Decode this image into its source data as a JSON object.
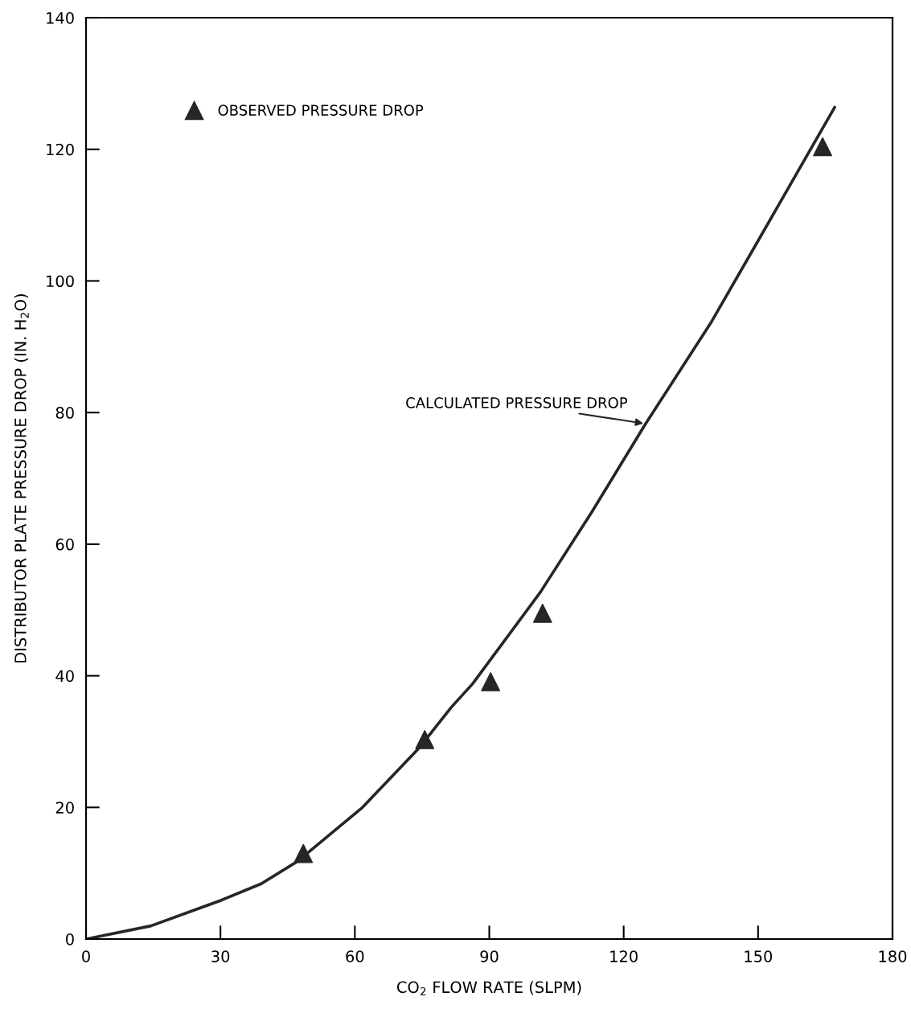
{
  "chart_data": {
    "type": "line",
    "xlabel": "CO$_{2}$ FLOW RATE (SLPM)",
    "ylabel": "DISTRIBUTOR PLATE PRESSURE DROP (IN. H$_{2}$O)",
    "xlim": [
      0,
      180
    ],
    "ylim": [
      0,
      140
    ],
    "xticks": [
      0,
      30,
      60,
      90,
      120,
      150,
      180
    ],
    "yticks": [
      0,
      20,
      40,
      60,
      80,
      100,
      120,
      140
    ],
    "grid": false,
    "legend": "top left",
    "series": [
      {
        "name": "OBSERVED PRESSURE DROP",
        "type": "scatter",
        "marker": "triangle",
        "color": "#262626",
        "x": [
          48.5,
          75.6,
          90.3,
          101.9,
          164.4
        ],
        "values": [
          13.0,
          30.3,
          39.1,
          49.5,
          120.4
        ]
      },
      {
        "name": "CALCULATED PRESSURE DROP",
        "marker": "none",
        "line_style": "solid",
        "color": "#262626",
        "x": [
          0,
          14.5,
          30.2,
          39.1,
          47.2,
          61.7,
          74.3,
          81.5,
          86.3,
          101.4,
          112.9,
          124.9,
          139.6,
          150,
          167.1
        ],
        "values": [
          0,
          2.0,
          5.9,
          8.4,
          11.8,
          20.0,
          29.0,
          35.2,
          38.8,
          52.7,
          64.9,
          78.3,
          93.8,
          106.1,
          126.4
        ]
      }
    ]
  }
}
